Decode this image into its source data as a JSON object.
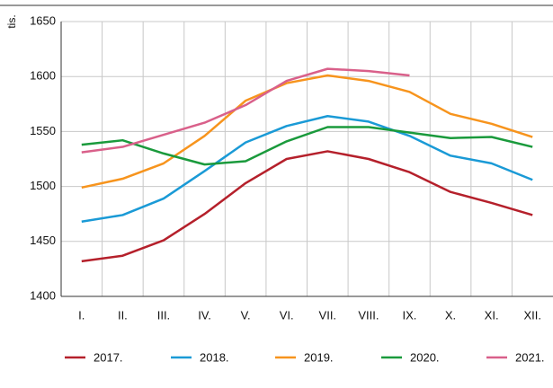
{
  "chart_data": {
    "type": "line",
    "y_label": "tis.",
    "categories": [
      "I.",
      "II.",
      "III.",
      "IV.",
      "V.",
      "VI.",
      "VII.",
      "VIII.",
      "IX.",
      "X.",
      "XI.",
      "XII."
    ],
    "series": [
      {
        "name": "2017.",
        "color": "#b5202b",
        "values": [
          1432,
          1437,
          1451,
          1475,
          1503,
          1525,
          1532,
          1525,
          1513,
          1495,
          1485,
          1474
        ]
      },
      {
        "name": "2018.",
        "color": "#1a9ad6",
        "values": [
          1468,
          1474,
          1489,
          1514,
          1540,
          1555,
          1564,
          1559,
          1546,
          1528,
          1521,
          1506
        ]
      },
      {
        "name": "2019.",
        "color": "#f7941d",
        "values": [
          1499,
          1507,
          1521,
          1546,
          1578,
          1594,
          1601,
          1596,
          1586,
          1566,
          1557,
          1545
        ]
      },
      {
        "name": "2020.",
        "color": "#1a9a3c",
        "values": [
          1538,
          1542,
          1530,
          1520,
          1523,
          1541,
          1554,
          1554,
          1549,
          1544,
          1545,
          1536
        ]
      },
      {
        "name": "2021.",
        "color": "#d9608a",
        "values": [
          1531,
          1536,
          1547,
          1558,
          1574,
          1596,
          1607,
          1605,
          1601,
          null,
          null,
          null
        ]
      }
    ],
    "ylim": [
      1400,
      1650
    ],
    "yticks": [
      1400,
      1450,
      1500,
      1550,
      1600,
      1650
    ],
    "grid": true
  }
}
